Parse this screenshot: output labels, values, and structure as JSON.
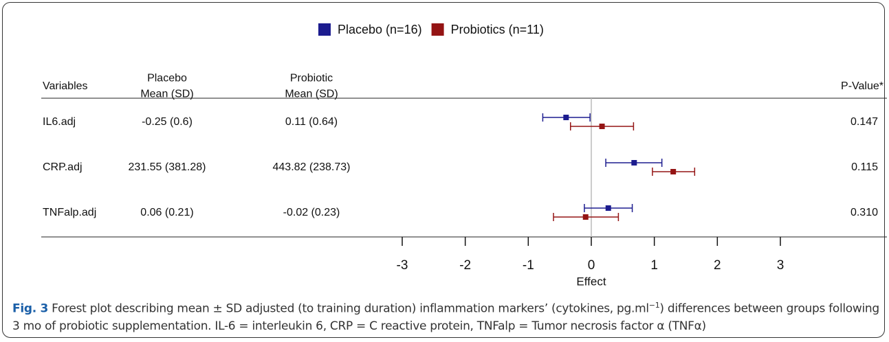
{
  "chart_data": {
    "type": "forest",
    "legend": {
      "position": "top"
    },
    "columns": {
      "variable": {
        "header": [
          "Variables"
        ]
      },
      "placebo": {
        "header": [
          "Placebo",
          "Mean (SD)"
        ]
      },
      "probiotic": {
        "header": [
          "Probiotic",
          "Mean (SD)"
        ]
      },
      "p": {
        "header": [
          "P-Value*"
        ]
      }
    },
    "rows": [
      {
        "variable": "IL6.adj",
        "placebo": "-0.25 (0.6)",
        "probiotic": "0.11 (0.64)",
        "p": "0.147"
      },
      {
        "variable": "CRP.adj",
        "placebo": "231.55 (381.28)",
        "probiotic": "443.82 (238.73)",
        "p": "0.115"
      },
      {
        "variable": "TNFalp.adj",
        "placebo": "0.06 (0.21)",
        "probiotic": "-0.02 (0.23)",
        "p": "0.310"
      }
    ],
    "series": [
      {
        "name": "Placebo (n=16)",
        "color": "#1c1c8f",
        "values": [
          -0.4,
          0.68,
          0.27
        ],
        "lower": [
          -0.77,
          0.23,
          -0.11
        ],
        "upper": [
          -0.02,
          1.12,
          0.65
        ]
      },
      {
        "name": "Probiotics (n=11)",
        "color": "#941414",
        "values": [
          0.17,
          1.3,
          -0.09
        ],
        "lower": [
          -0.33,
          0.97,
          -0.6
        ],
        "upper": [
          0.67,
          1.64,
          0.43
        ]
      }
    ],
    "xlim": [
      -3,
      3
    ],
    "xticks": [
      -3,
      -2,
      -1,
      0,
      1,
      2,
      3
    ],
    "reference_line": 0,
    "xlabel": "Effect",
    "caption": {
      "label": "Fig. 3",
      "text": "Forest plot describing mean ± SD adjusted (to training duration) inflammation markers’ (cytokines, pg.ml",
      "superscript": "−1",
      "text_after": ") differences between groups following 3 mo of probiotic supplementation. IL-6 = interleukin 6, CRP = C reactive protein, TNFalp = Tumor necrosis factor α (TNFα)"
    }
  }
}
